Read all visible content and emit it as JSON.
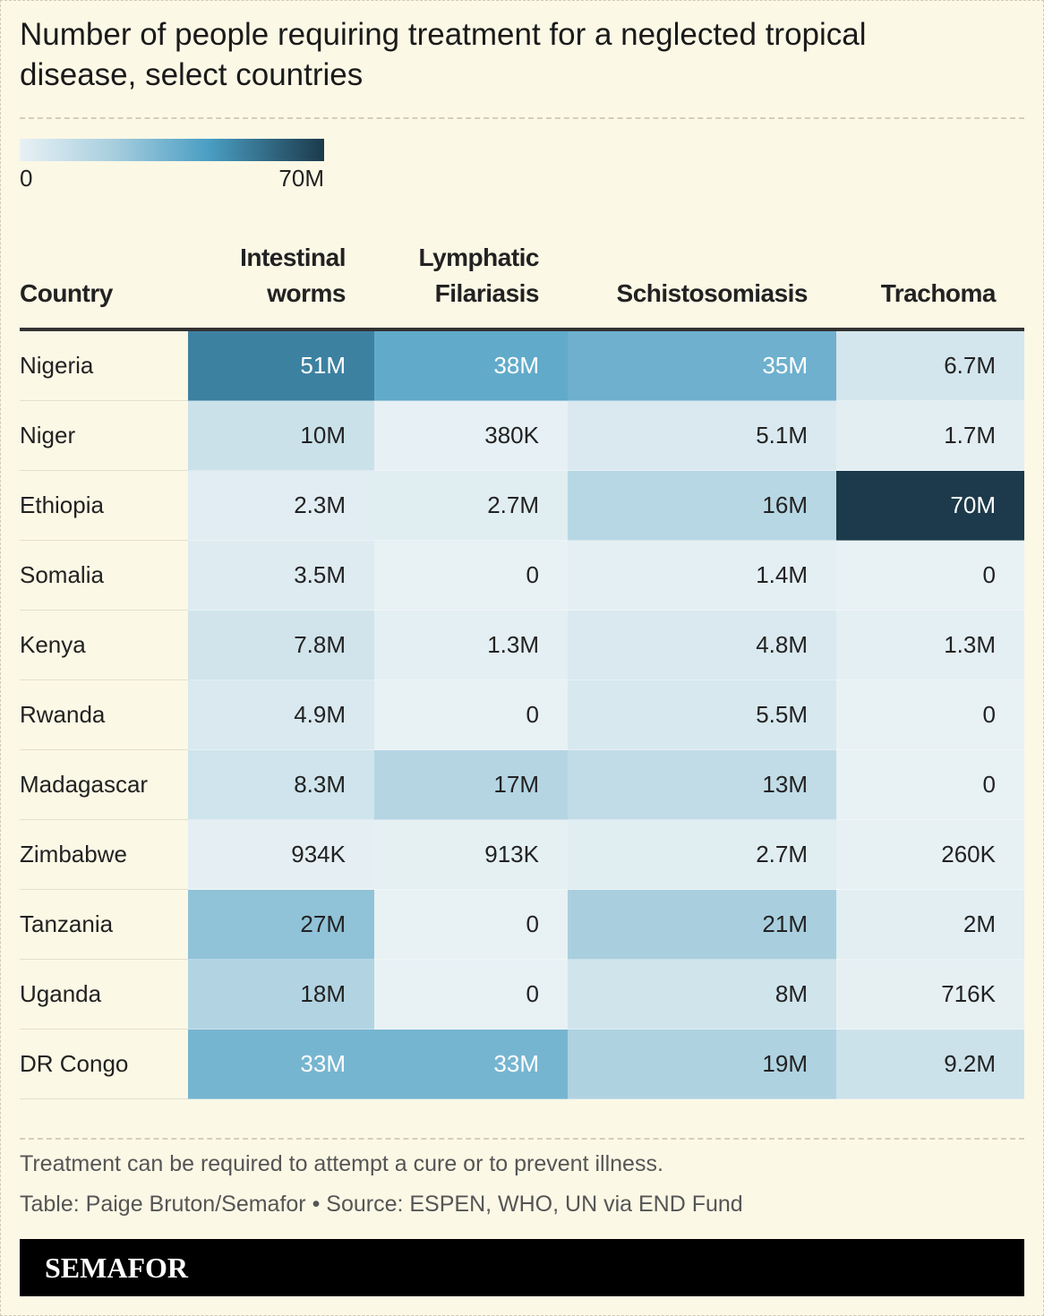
{
  "title": "Number of people requiring treatment for a neglected tropical disease, select countries",
  "legend": {
    "min": "0",
    "max": "70M"
  },
  "table": {
    "header": [
      "Country",
      "Intestinal worms",
      "Lymphatic Filariasis",
      "Schistosomiasis",
      "Trachoma"
    ],
    "rows": [
      [
        "Nigeria",
        "51M",
        "38M",
        "35M",
        "6.7M"
      ],
      [
        "Niger",
        "10M",
        "380K",
        "5.1M",
        "1.7M"
      ],
      [
        "Ethiopia",
        "2.3M",
        "2.7M",
        "16M",
        "70M"
      ],
      [
        "Somalia",
        "3.5M",
        "0",
        "1.4M",
        "0"
      ],
      [
        "Kenya",
        "7.8M",
        "1.3M",
        "4.8M",
        "1.3M"
      ],
      [
        "Rwanda",
        "4.9M",
        "0",
        "5.5M",
        "0"
      ],
      [
        "Madagascar",
        "8.3M",
        "17M",
        "13M",
        "0"
      ],
      [
        "Zimbabwe",
        "934K",
        "913K",
        "2.7M",
        "260K"
      ],
      [
        "Tanzania",
        "27M",
        "0",
        "21M",
        "2M"
      ],
      [
        "Uganda",
        "18M",
        "0",
        "8M",
        "716K"
      ],
      [
        "DR Congo",
        "33M",
        "33M",
        "19M",
        "9.2M"
      ]
    ]
  },
  "notes": [
    "Treatment can be required to attempt a cure or to prevent illness.",
    "Table: Paige Bruton/Semafor • Source: ESPEN, WHO, UN via END Fund"
  ],
  "brand": "SEMAFOR"
}
